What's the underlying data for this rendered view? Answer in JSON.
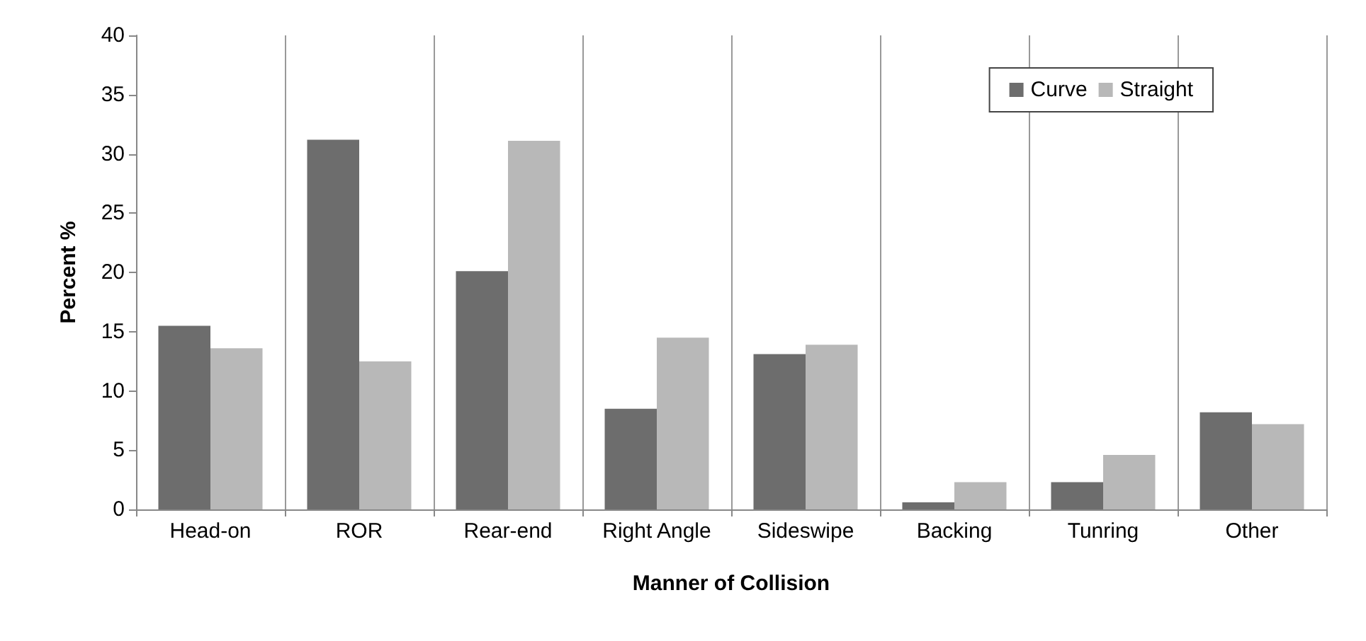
{
  "chart_data": {
    "type": "bar",
    "xlabel": "Manner of Collision",
    "ylabel": "Percent %",
    "categories": [
      "Head-on",
      "ROR",
      "Rear-end",
      "Right Angle",
      "Sideswipe",
      "Backing",
      "Tunring",
      "Other"
    ],
    "series": [
      {
        "name": "Curve",
        "color": "#6d6d6d",
        "values": [
          15.5,
          31.2,
          20.1,
          8.5,
          13.1,
          0.6,
          2.3,
          8.2
        ]
      },
      {
        "name": "Straight",
        "color": "#b8b8b8",
        "values": [
          13.6,
          12.5,
          31.1,
          14.5,
          13.9,
          2.3,
          4.6,
          7.2
        ]
      }
    ],
    "ylim": [
      0,
      40
    ],
    "yticks": [
      0,
      5,
      10,
      15,
      20,
      25,
      30,
      35,
      40
    ],
    "grid": "x",
    "legend": "top right"
  }
}
